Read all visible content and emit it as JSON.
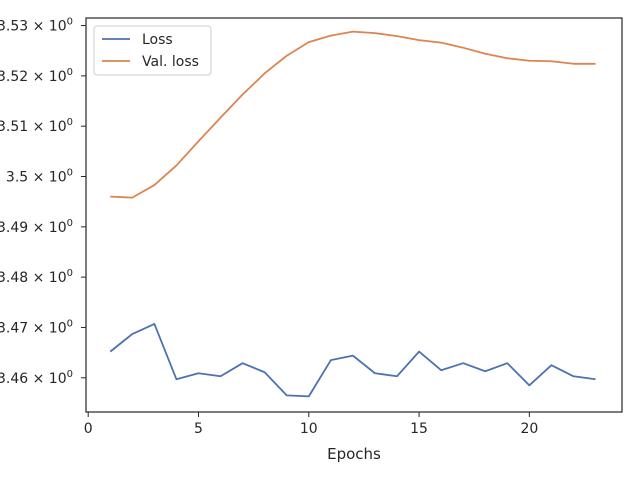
{
  "chart_data": {
    "type": "line",
    "title": "",
    "xlabel": "Epochs",
    "ylabel": "",
    "xlim": [
      -0.1,
      24.2
    ],
    "ylim": [
      3.4532,
      3.5315
    ],
    "xticks": [
      0,
      5,
      10,
      15,
      20
    ],
    "xtick_labels": [
      "0",
      "5",
      "10",
      "15",
      "20"
    ],
    "yticks": [
      3.46,
      3.47,
      3.48,
      3.49,
      3.5,
      3.51,
      3.52,
      3.53
    ],
    "ytick_labels": [
      "3.46",
      "3.47",
      "3.48",
      "3.49",
      "3.5",
      "3.51",
      "3.52",
      "3.53"
    ],
    "ytick_exponent": "0",
    "grid": false,
    "legend_position": "top-left",
    "x": [
      1,
      2,
      3,
      4,
      5,
      6,
      7,
      8,
      9,
      10,
      11,
      12,
      13,
      14,
      15,
      16,
      17,
      18,
      19,
      20,
      21,
      22,
      23
    ],
    "series": [
      {
        "name": "Loss",
        "color": "#4c72b0",
        "values": [
          3.4652,
          3.4687,
          3.4707,
          3.4597,
          3.4609,
          3.4603,
          3.4629,
          3.4611,
          3.4565,
          3.4563,
          3.4635,
          3.4644,
          3.4609,
          3.4603,
          3.4652,
          3.4615,
          3.4629,
          3.4613,
          3.4629,
          3.4585,
          3.4625,
          3.4603,
          3.4597
        ]
      },
      {
        "name": "Val. loss",
        "color": "#dd8452",
        "values": [
          3.496,
          3.4958,
          3.4983,
          3.5022,
          3.507,
          3.5117,
          3.5163,
          3.5205,
          3.524,
          3.5267,
          3.528,
          3.5288,
          3.5285,
          3.5279,
          3.5271,
          3.5266,
          3.5256,
          3.5244,
          3.5235,
          3.523,
          3.5229,
          3.5224,
          3.5224
        ]
      }
    ]
  }
}
